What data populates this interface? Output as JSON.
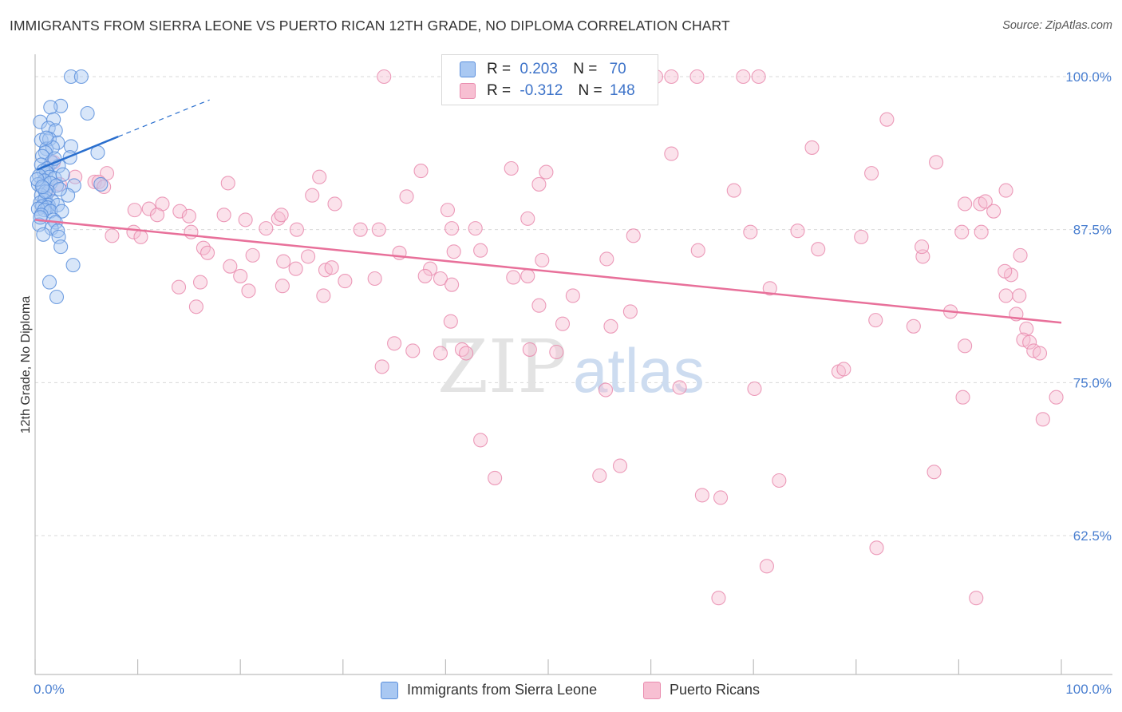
{
  "title": "IMMIGRANTS FROM SIERRA LEONE VS PUERTO RICAN 12TH GRADE, NO DIPLOMA CORRELATION CHART",
  "source": "Source: ZipAtlas.com",
  "watermark": {
    "zip": "ZIP",
    "atlas": "atlas"
  },
  "colors": {
    "blue_fill": "#a9c8f2",
    "blue_edge": "#5b8fdc",
    "blue_line": "#2a6fce",
    "pink_fill": "#f7bfd2",
    "pink_edge": "#e98bae",
    "pink_line": "#e8709a",
    "tick_text": "#4a7fd0",
    "grid": "#d9d9d9"
  },
  "legend_top": {
    "rows": [
      {
        "r_label": "R =",
        "r_value": "0.203",
        "n_label": "N =",
        "n_value": "70"
      },
      {
        "r_label": "R =",
        "r_value": "-0.312",
        "n_label": "N =",
        "n_value": "148"
      }
    ]
  },
  "legend_bottom": [
    "Immigrants from Sierra Leone",
    "Puerto Ricans"
  ],
  "chart_data": {
    "type": "scatter",
    "title": "IMMIGRANTS FROM SIERRA LEONE VS PUERTO RICAN 12TH GRADE, NO DIPLOMA CORRELATION CHART",
    "xlabel": "",
    "ylabel": "12th Grade, No Diploma",
    "xlim": [
      0,
      100
    ],
    "ylim": [
      50,
      101.3
    ],
    "x_tick_labels": [
      "0.0%",
      "100.0%"
    ],
    "y_ticks": [
      62.5,
      75.0,
      87.5,
      100.0
    ],
    "y_tick_labels": [
      "62.5%",
      "75.0%",
      "87.5%",
      "100.0%"
    ],
    "grid": true,
    "legend_position": "bottom",
    "series": [
      {
        "name": "Immigrants from Sierra Leone",
        "color": "blue",
        "R": 0.203,
        "N": 70,
        "trend_solid": [
          [
            0.2,
            92.4
          ],
          [
            8.1,
            95.1
          ]
        ],
        "trend_dashed": [
          [
            8.1,
            95.1
          ],
          [
            17,
            98.1
          ]
        ],
        "points": [
          [
            3.5,
            100.0
          ],
          [
            4.5,
            100.0
          ],
          [
            2.5,
            97.6
          ],
          [
            1.5,
            97.5
          ],
          [
            5.1,
            97.0
          ],
          [
            0.5,
            96.3
          ],
          [
            1.8,
            96.5
          ],
          [
            1.3,
            95.8
          ],
          [
            2.0,
            95.6
          ],
          [
            0.6,
            94.8
          ],
          [
            1.4,
            94.9
          ],
          [
            2.2,
            94.6
          ],
          [
            3.5,
            94.3
          ],
          [
            1.1,
            94.1
          ],
          [
            1.7,
            94.2
          ],
          [
            6.1,
            93.8
          ],
          [
            1.0,
            93.8
          ],
          [
            0.7,
            93.5
          ],
          [
            3.4,
            93.4
          ],
          [
            1.6,
            93.0
          ],
          [
            0.6,
            92.8
          ],
          [
            1.2,
            92.5
          ],
          [
            2.3,
            92.7
          ],
          [
            0.8,
            92.3
          ],
          [
            1.1,
            92.2
          ],
          [
            1.4,
            91.8
          ],
          [
            0.4,
            91.9
          ],
          [
            1.9,
            91.7
          ],
          [
            0.9,
            91.5
          ],
          [
            1.5,
            91.3
          ],
          [
            0.3,
            91.2
          ],
          [
            2.1,
            91.1
          ],
          [
            3.8,
            91.1
          ],
          [
            6.4,
            91.2
          ],
          [
            0.8,
            90.9
          ],
          [
            1.3,
            90.6
          ],
          [
            0.6,
            90.3
          ],
          [
            1.0,
            90.1
          ],
          [
            3.2,
            90.3
          ],
          [
            0.9,
            89.9
          ],
          [
            1.7,
            89.8
          ],
          [
            0.5,
            89.7
          ],
          [
            1.3,
            89.5
          ],
          [
            0.7,
            89.4
          ],
          [
            1.2,
            89.3
          ],
          [
            2.2,
            89.5
          ],
          [
            0.3,
            89.2
          ],
          [
            0.9,
            89.1
          ],
          [
            1.5,
            89.0
          ],
          [
            2.6,
            89.0
          ],
          [
            0.6,
            88.7
          ],
          [
            1.8,
            88.3
          ],
          [
            2.0,
            88.1
          ],
          [
            0.4,
            87.9
          ],
          [
            1.6,
            87.6
          ],
          [
            2.2,
            87.4
          ],
          [
            0.8,
            87.1
          ],
          [
            2.3,
            86.9
          ],
          [
            2.5,
            86.1
          ],
          [
            3.7,
            84.6
          ],
          [
            1.4,
            83.2
          ],
          [
            2.1,
            82.0
          ],
          [
            1.0,
            90.6
          ],
          [
            2.7,
            92.0
          ],
          [
            0.5,
            88.5
          ],
          [
            1.9,
            93.3
          ],
          [
            0.2,
            91.6
          ],
          [
            1.1,
            95.0
          ],
          [
            0.7,
            91.0
          ],
          [
            2.4,
            90.8
          ]
        ]
      },
      {
        "name": "Puerto Ricans",
        "color": "pink",
        "R": -0.312,
        "N": 148,
        "trend_solid": [
          [
            0,
            88.3
          ],
          [
            100,
            79.9
          ]
        ],
        "points": [
          [
            34.0,
            100.0
          ],
          [
            59.5,
            100.0
          ],
          [
            60.5,
            100.0
          ],
          [
            62.0,
            100.0
          ],
          [
            64.5,
            100.0
          ],
          [
            69.0,
            100.0
          ],
          [
            70.5,
            100.0
          ],
          [
            83.0,
            96.5
          ],
          [
            1.8,
            93.0
          ],
          [
            3.9,
            91.8
          ],
          [
            7.0,
            92.1
          ],
          [
            5.8,
            91.4
          ],
          [
            6.2,
            91.4
          ],
          [
            6.7,
            91.0
          ],
          [
            2.4,
            91.2
          ],
          [
            1.3,
            90.6
          ],
          [
            18.8,
            91.3
          ],
          [
            27.7,
            91.8
          ],
          [
            37.6,
            92.3
          ],
          [
            46.4,
            92.5
          ],
          [
            49.1,
            91.2
          ],
          [
            49.8,
            92.2
          ],
          [
            68.1,
            90.7
          ],
          [
            62.0,
            93.7
          ],
          [
            75.7,
            94.2
          ],
          [
            81.5,
            92.1
          ],
          [
            87.8,
            93.0
          ],
          [
            94.6,
            90.7
          ],
          [
            27.0,
            90.3
          ],
          [
            29.2,
            89.6
          ],
          [
            36.2,
            90.2
          ],
          [
            40.2,
            89.1
          ],
          [
            12.4,
            89.6
          ],
          [
            9.7,
            89.1
          ],
          [
            11.1,
            89.2
          ],
          [
            11.9,
            88.7
          ],
          [
            14.1,
            89.0
          ],
          [
            15.0,
            88.6
          ],
          [
            18.4,
            88.7
          ],
          [
            20.5,
            88.3
          ],
          [
            22.5,
            87.6
          ],
          [
            23.7,
            88.4
          ],
          [
            24.0,
            88.7
          ],
          [
            25.5,
            87.5
          ],
          [
            31.7,
            87.5
          ],
          [
            33.5,
            87.5
          ],
          [
            40.6,
            87.6
          ],
          [
            42.9,
            87.6
          ],
          [
            48.0,
            88.4
          ],
          [
            7.5,
            87.0
          ],
          [
            9.6,
            87.3
          ],
          [
            10.3,
            86.9
          ],
          [
            15.2,
            87.3
          ],
          [
            58.3,
            87.0
          ],
          [
            69.7,
            87.3
          ],
          [
            74.3,
            87.4
          ],
          [
            90.3,
            87.3
          ],
          [
            92.1,
            89.6
          ],
          [
            92.6,
            89.8
          ],
          [
            90.6,
            89.6
          ],
          [
            92.2,
            87.3
          ],
          [
            93.4,
            89.0
          ],
          [
            96.0,
            85.4
          ],
          [
            86.5,
            85.3
          ],
          [
            86.4,
            86.1
          ],
          [
            16.4,
            86.0
          ],
          [
            16.8,
            85.6
          ],
          [
            21.2,
            85.4
          ],
          [
            24.2,
            84.9
          ],
          [
            25.4,
            84.3
          ],
          [
            26.6,
            85.3
          ],
          [
            28.3,
            84.2
          ],
          [
            28.9,
            84.4
          ],
          [
            35.5,
            85.6
          ],
          [
            38.5,
            84.3
          ],
          [
            40.8,
            85.7
          ],
          [
            43.4,
            85.8
          ],
          [
            49.4,
            85.0
          ],
          [
            55.7,
            85.1
          ],
          [
            64.6,
            85.8
          ],
          [
            76.3,
            85.9
          ],
          [
            14.0,
            82.8
          ],
          [
            16.1,
            83.2
          ],
          [
            19.0,
            84.5
          ],
          [
            20.0,
            83.7
          ],
          [
            20.8,
            82.5
          ],
          [
            24.1,
            82.9
          ],
          [
            30.2,
            83.3
          ],
          [
            33.1,
            83.5
          ],
          [
            38.0,
            83.7
          ],
          [
            39.5,
            83.5
          ],
          [
            40.6,
            83.0
          ],
          [
            46.6,
            83.6
          ],
          [
            48.0,
            83.7
          ],
          [
            52.4,
            82.1
          ],
          [
            71.6,
            82.7
          ],
          [
            94.6,
            82.1
          ],
          [
            95.9,
            82.1
          ],
          [
            95.1,
            83.8
          ],
          [
            95.6,
            80.6
          ],
          [
            96.6,
            79.4
          ],
          [
            96.3,
            78.5
          ],
          [
            96.9,
            78.3
          ],
          [
            97.3,
            77.6
          ],
          [
            97.9,
            77.4
          ],
          [
            15.7,
            81.2
          ],
          [
            28.1,
            82.1
          ],
          [
            40.5,
            80.0
          ],
          [
            49.1,
            81.3
          ],
          [
            51.4,
            79.8
          ],
          [
            56.1,
            79.6
          ],
          [
            58.0,
            80.8
          ],
          [
            81.9,
            80.1
          ],
          [
            85.6,
            79.6
          ],
          [
            89.2,
            80.8
          ],
          [
            90.6,
            78.0
          ],
          [
            35.0,
            78.2
          ],
          [
            41.6,
            77.7
          ],
          [
            42.0,
            77.4
          ],
          [
            48.2,
            77.7
          ],
          [
            50.8,
            77.5
          ],
          [
            33.8,
            76.3
          ],
          [
            36.8,
            77.6
          ],
          [
            39.5,
            77.4
          ],
          [
            55.6,
            74.4
          ],
          [
            62.8,
            74.6
          ],
          [
            70.1,
            74.5
          ],
          [
            78.3,
            75.9
          ],
          [
            78.8,
            76.1
          ],
          [
            90.4,
            73.8
          ],
          [
            99.5,
            73.8
          ],
          [
            98.2,
            72.0
          ],
          [
            43.4,
            70.3
          ],
          [
            44.8,
            67.2
          ],
          [
            55.0,
            67.4
          ],
          [
            57.0,
            68.2
          ],
          [
            65.0,
            65.8
          ],
          [
            66.8,
            65.6
          ],
          [
            72.5,
            67.0
          ],
          [
            87.6,
            67.7
          ],
          [
            71.3,
            60.0
          ],
          [
            82.0,
            61.5
          ],
          [
            66.6,
            57.4
          ],
          [
            91.7,
            57.4
          ],
          [
            80.5,
            86.9
          ],
          [
            94.5,
            84.1
          ]
        ]
      }
    ]
  }
}
